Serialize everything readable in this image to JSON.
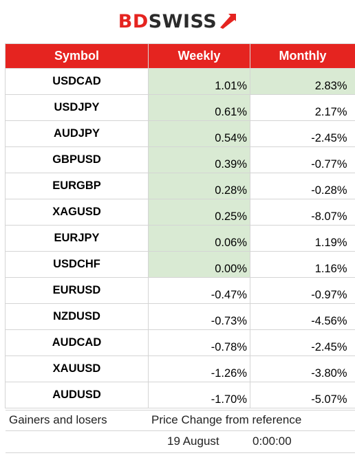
{
  "brand": {
    "logo_text_bd": "BD",
    "logo_text_swiss": "SWISS",
    "accent_color": "#e52420"
  },
  "table": {
    "headers": [
      "Symbol",
      "Weekly",
      "Monthly"
    ],
    "header_bg": "#e52420",
    "highlight_color": "#d9ead3",
    "rows": [
      {
        "symbol": "USDCAD",
        "weekly": "1.01%",
        "monthly": "2.83%",
        "weekly_highlight": true,
        "monthly_highlight": true
      },
      {
        "symbol": "USDJPY",
        "weekly": "0.61%",
        "monthly": "2.17%",
        "weekly_highlight": true,
        "monthly_highlight": false
      },
      {
        "symbol": "AUDJPY",
        "weekly": "0.54%",
        "monthly": "-2.45%",
        "weekly_highlight": true,
        "monthly_highlight": false
      },
      {
        "symbol": "GBPUSD",
        "weekly": "0.39%",
        "monthly": "-0.77%",
        "weekly_highlight": true,
        "monthly_highlight": false
      },
      {
        "symbol": "EURGBP",
        "weekly": "0.28%",
        "monthly": "-0.28%",
        "weekly_highlight": true,
        "monthly_highlight": false
      },
      {
        "symbol": "XAGUSD",
        "weekly": "0.25%",
        "monthly": "-8.07%",
        "weekly_highlight": true,
        "monthly_highlight": false
      },
      {
        "symbol": "EURJPY",
        "weekly": "0.06%",
        "monthly": "1.19%",
        "weekly_highlight": true,
        "monthly_highlight": false
      },
      {
        "symbol": "USDCHF",
        "weekly": "0.00%",
        "monthly": "1.16%",
        "weekly_highlight": true,
        "monthly_highlight": false
      },
      {
        "symbol": "EURUSD",
        "weekly": "-0.47%",
        "monthly": "-0.97%",
        "weekly_highlight": false,
        "monthly_highlight": false
      },
      {
        "symbol": "NZDUSD",
        "weekly": "-0.73%",
        "monthly": "-4.56%",
        "weekly_highlight": false,
        "monthly_highlight": false
      },
      {
        "symbol": "AUDCAD",
        "weekly": "-0.78%",
        "monthly": "-2.45%",
        "weekly_highlight": false,
        "monthly_highlight": false
      },
      {
        "symbol": "XAUUSD",
        "weekly": "-1.26%",
        "monthly": "-3.80%",
        "weekly_highlight": false,
        "monthly_highlight": false
      },
      {
        "symbol": "AUDUSD",
        "weekly": "-1.70%",
        "monthly": "-5.07%",
        "weekly_highlight": false,
        "monthly_highlight": false
      }
    ]
  },
  "footer": {
    "left_label": "Gainers and losers",
    "right_label": "Price Change from reference",
    "reference_date": "19 August",
    "reference_time": "0:00:00"
  }
}
